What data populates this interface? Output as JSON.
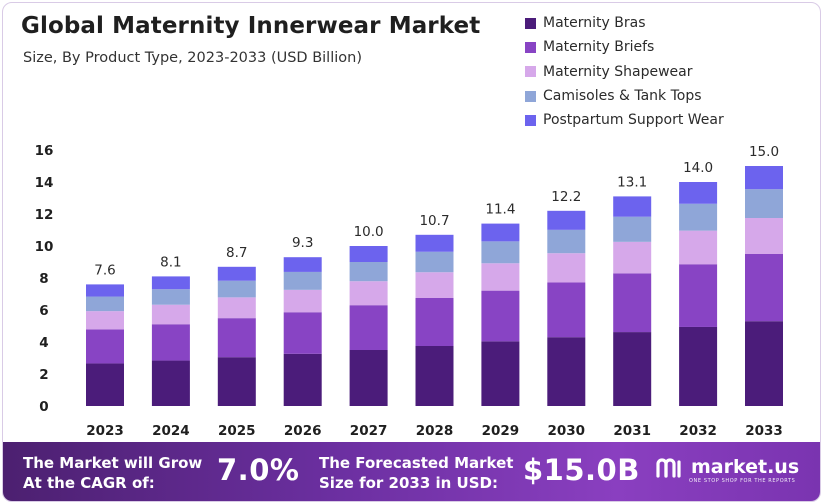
{
  "chart_data": {
    "type": "bar",
    "stacked": true,
    "title": "Global Maternity Innerwear Market",
    "subtitle": "Size, By Product Type, 2023-2033 (USD Billion)",
    "xlabel": "",
    "ylabel": "",
    "ylim": [
      0,
      16
    ],
    "yticks": [
      0,
      2,
      4,
      6,
      8,
      10,
      12,
      14,
      16
    ],
    "grid": false,
    "legend_position": "top-right",
    "categories": [
      "2023",
      "2024",
      "2025",
      "2026",
      "2027",
      "2028",
      "2029",
      "2030",
      "2031",
      "2032",
      "2033"
    ],
    "totals": [
      7.6,
      8.1,
      8.7,
      9.3,
      10.0,
      10.7,
      11.4,
      12.2,
      13.1,
      14.0,
      15.0
    ],
    "total_labels": [
      "7.6",
      "8.1",
      "8.7",
      "9.3",
      "10.0",
      "10.7",
      "11.4",
      "12.2",
      "13.1",
      "14.0",
      "15.0"
    ],
    "series": [
      {
        "name": "Maternity Bras",
        "color": "#4b1c7a",
        "values": [
          2.66,
          2.84,
          3.05,
          3.26,
          3.5,
          3.75,
          4.04,
          4.3,
          4.62,
          4.94,
          5.3
        ]
      },
      {
        "name": "Maternity Briefs",
        "color": "#8844c4",
        "values": [
          2.13,
          2.27,
          2.44,
          2.6,
          2.8,
          3.0,
          3.17,
          3.42,
          3.67,
          3.92,
          4.2
        ]
      },
      {
        "name": "Maternity Shapewear",
        "color": "#d6a8ea",
        "values": [
          1.14,
          1.22,
          1.3,
          1.4,
          1.5,
          1.61,
          1.71,
          1.83,
          1.97,
          2.1,
          2.25
        ]
      },
      {
        "name": "Camisoles & Tank Tops",
        "color": "#8fa6d8",
        "values": [
          0.91,
          0.97,
          1.04,
          1.12,
          1.2,
          1.28,
          1.37,
          1.46,
          1.57,
          1.68,
          1.8
        ]
      },
      {
        "name": "Postpartum Support Wear",
        "color": "#6c63ee",
        "values": [
          0.76,
          0.8,
          0.87,
          0.92,
          1.0,
          1.06,
          1.11,
          1.19,
          1.27,
          1.36,
          1.45
        ]
      }
    ]
  },
  "footer": {
    "cagr_text_line1": "The Market will Grow",
    "cagr_text_line2": "At the CAGR of:",
    "cagr_value": "7.0%",
    "forecast_text_line1": "The Forecasted Market",
    "forecast_text_line2": "Size for 2033 in USD:",
    "forecast_value": "$15.0B",
    "brand_name": "market.us",
    "brand_tagline": "ONE STOP SHOP FOR THE REPORTS",
    "logo_icon": "market-us-logo-icon"
  }
}
